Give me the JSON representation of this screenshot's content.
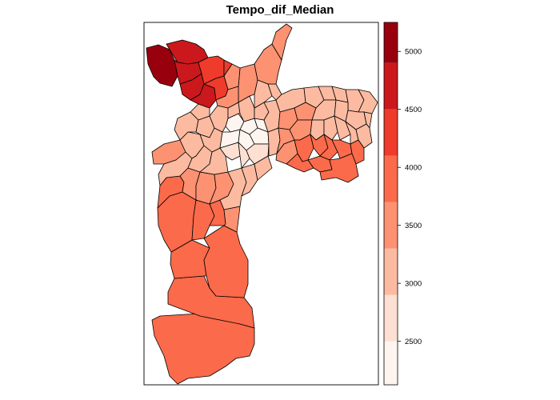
{
  "title": "Tempo_dif_Median",
  "colors": {
    "c1": "#fff5f0",
    "c2": "#fee0d2",
    "c3": "#fcbba1",
    "c4": "#fc9272",
    "c5": "#fb6a4a",
    "c6": "#ef3b2c",
    "c7": "#cb181d",
    "c8": "#99000d"
  },
  "legend": {
    "range": [
      2125,
      5250
    ],
    "breaks": [
      2125,
      2500,
      2900,
      3300,
      3700,
      4100,
      4500,
      4900,
      5250
    ],
    "colors": [
      "#fff5f0",
      "#fee0d2",
      "#fcbba1",
      "#fc9272",
      "#fb6a4a",
      "#ef3b2c",
      "#cb181d",
      "#99000d"
    ],
    "ticks": [
      {
        "value": 2500,
        "label": "2500"
      },
      {
        "value": 3000,
        "label": "3000"
      },
      {
        "value": 3500,
        "label": "3500"
      },
      {
        "value": 4000,
        "label": "4000"
      },
      {
        "value": 4500,
        "label": "4500"
      },
      {
        "value": 5000,
        "label": "5000"
      }
    ]
  }
}
